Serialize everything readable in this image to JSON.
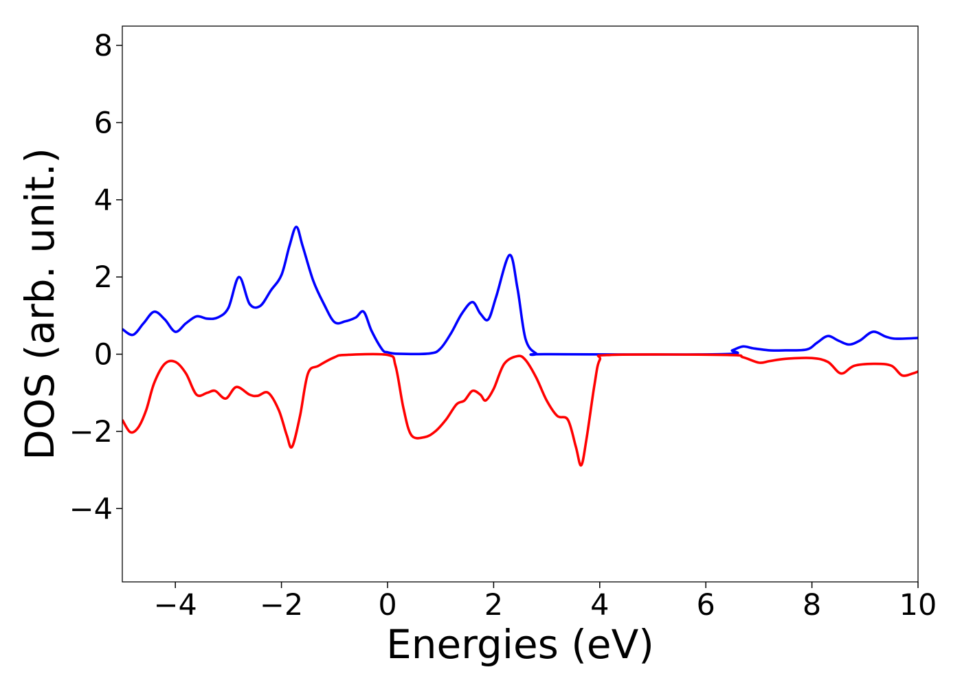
{
  "chart_data": {
    "type": "line",
    "title": "",
    "xlabel": "Energies (eV)",
    "ylabel": "DOS (arb. unit.)",
    "xlim": [
      -5,
      10
    ],
    "ylim": [
      -5.9,
      8.5
    ],
    "xticks": [
      -4,
      -2,
      0,
      2,
      4,
      6,
      8,
      10
    ],
    "yticks": [
      -4,
      -2,
      0,
      2,
      4,
      6,
      8
    ],
    "grid": false,
    "legend": "none",
    "series": [
      {
        "color": "#0000ff",
        "points": [
          [
            -5.0,
            0.65
          ],
          [
            -4.8,
            0.5
          ],
          [
            -4.6,
            0.8
          ],
          [
            -4.4,
            1.1
          ],
          [
            -4.2,
            0.9
          ],
          [
            -4.0,
            0.58
          ],
          [
            -3.8,
            0.8
          ],
          [
            -3.6,
            0.98
          ],
          [
            -3.4,
            0.92
          ],
          [
            -3.2,
            0.95
          ],
          [
            -3.0,
            1.2
          ],
          [
            -2.8,
            2.0
          ],
          [
            -2.6,
            1.3
          ],
          [
            -2.4,
            1.25
          ],
          [
            -2.2,
            1.65
          ],
          [
            -2.0,
            2.05
          ],
          [
            -1.85,
            2.8
          ],
          [
            -1.72,
            3.3
          ],
          [
            -1.6,
            2.8
          ],
          [
            -1.4,
            1.9
          ],
          [
            -1.2,
            1.3
          ],
          [
            -1.0,
            0.83
          ],
          [
            -0.8,
            0.85
          ],
          [
            -0.6,
            0.95
          ],
          [
            -0.45,
            1.1
          ],
          [
            -0.3,
            0.6
          ],
          [
            -0.1,
            0.12
          ],
          [
            0.0,
            0.05
          ],
          [
            0.2,
            0.01
          ],
          [
            0.8,
            0.02
          ],
          [
            1.0,
            0.15
          ],
          [
            1.2,
            0.55
          ],
          [
            1.4,
            1.05
          ],
          [
            1.6,
            1.35
          ],
          [
            1.75,
            1.05
          ],
          [
            1.9,
            0.9
          ],
          [
            2.05,
            1.5
          ],
          [
            2.3,
            2.57
          ],
          [
            2.45,
            1.7
          ],
          [
            2.6,
            0.4
          ],
          [
            2.8,
            0.02
          ],
          [
            3.0,
            0.0
          ],
          [
            6.3,
            0.0
          ],
          [
            6.5,
            0.1
          ],
          [
            6.7,
            0.2
          ],
          [
            6.9,
            0.15
          ],
          [
            7.2,
            0.1
          ],
          [
            7.5,
            0.1
          ],
          [
            7.9,
            0.12
          ],
          [
            8.1,
            0.3
          ],
          [
            8.3,
            0.47
          ],
          [
            8.5,
            0.35
          ],
          [
            8.7,
            0.25
          ],
          [
            8.9,
            0.35
          ],
          [
            9.15,
            0.58
          ],
          [
            9.4,
            0.45
          ],
          [
            9.6,
            0.4
          ],
          [
            10.0,
            0.42
          ]
        ]
      },
      {
        "color": "#ff0000",
        "points": [
          [
            -5.0,
            -1.7
          ],
          [
            -4.85,
            -2.02
          ],
          [
            -4.7,
            -1.9
          ],
          [
            -4.55,
            -1.45
          ],
          [
            -4.4,
            -0.75
          ],
          [
            -4.2,
            -0.25
          ],
          [
            -4.0,
            -0.2
          ],
          [
            -3.8,
            -0.5
          ],
          [
            -3.6,
            -1.05
          ],
          [
            -3.4,
            -1.0
          ],
          [
            -3.25,
            -0.95
          ],
          [
            -3.05,
            -1.15
          ],
          [
            -2.85,
            -0.85
          ],
          [
            -2.6,
            -1.05
          ],
          [
            -2.45,
            -1.08
          ],
          [
            -2.25,
            -1.0
          ],
          [
            -2.05,
            -1.45
          ],
          [
            -1.9,
            -2.1
          ],
          [
            -1.8,
            -2.4
          ],
          [
            -1.65,
            -1.6
          ],
          [
            -1.5,
            -0.5
          ],
          [
            -1.3,
            -0.3
          ],
          [
            -1.0,
            -0.08
          ],
          [
            -0.8,
            -0.02
          ],
          [
            0.0,
            -0.02
          ],
          [
            0.15,
            -0.3
          ],
          [
            0.3,
            -1.4
          ],
          [
            0.45,
            -2.1
          ],
          [
            0.7,
            -2.15
          ],
          [
            0.9,
            -2.0
          ],
          [
            1.1,
            -1.7
          ],
          [
            1.3,
            -1.3
          ],
          [
            1.45,
            -1.2
          ],
          [
            1.6,
            -0.95
          ],
          [
            1.75,
            -1.05
          ],
          [
            1.85,
            -1.2
          ],
          [
            2.0,
            -0.9
          ],
          [
            2.2,
            -0.25
          ],
          [
            2.45,
            -0.05
          ],
          [
            2.6,
            -0.15
          ],
          [
            2.8,
            -0.6
          ],
          [
            3.0,
            -1.2
          ],
          [
            3.2,
            -1.6
          ],
          [
            3.4,
            -1.7
          ],
          [
            3.55,
            -2.4
          ],
          [
            3.65,
            -2.88
          ],
          [
            3.75,
            -2.2
          ],
          [
            3.9,
            -0.8
          ],
          [
            4.0,
            -0.15
          ],
          [
            4.2,
            -0.02
          ],
          [
            6.4,
            -0.02
          ],
          [
            6.7,
            -0.08
          ],
          [
            7.0,
            -0.22
          ],
          [
            7.2,
            -0.18
          ],
          [
            7.5,
            -0.12
          ],
          [
            8.0,
            -0.1
          ],
          [
            8.3,
            -0.2
          ],
          [
            8.55,
            -0.5
          ],
          [
            8.8,
            -0.3
          ],
          [
            9.2,
            -0.25
          ],
          [
            9.5,
            -0.3
          ],
          [
            9.7,
            -0.55
          ],
          [
            9.9,
            -0.5
          ],
          [
            10.0,
            -0.45
          ]
        ]
      }
    ]
  }
}
